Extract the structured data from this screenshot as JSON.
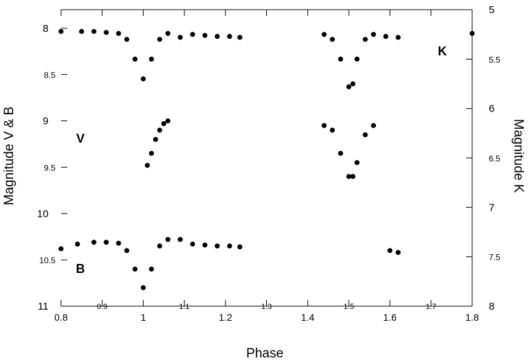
{
  "chart_data": {
    "type": "scatter",
    "title": "",
    "xlabel": "Phase",
    "ylabel_left": "Magnitude V & B",
    "ylabel_right": "Magnitude K",
    "xlim": [
      0.8,
      1.8
    ],
    "ylim_left": [
      11,
      7.8
    ],
    "ylim_right": [
      8,
      5
    ],
    "x_ticks": [
      "0.8",
      "0.9",
      "1",
      "1.1",
      "1.2",
      "1.3",
      "1.4",
      "1.5",
      "1.6",
      "1.7",
      "1.8"
    ],
    "y_left_ticks": [
      "8",
      "8.5",
      "9",
      "9.5",
      "10",
      "10.5",
      "11"
    ],
    "y_right_ticks": [
      "5",
      "5.5",
      "6",
      "6.5",
      "7",
      "7.5",
      "8"
    ],
    "grid": false,
    "marker_color": "#000000",
    "series": [
      {
        "name": "K",
        "axis": "right",
        "x": [
          0.8,
          0.85,
          0.88,
          0.91,
          0.94,
          0.96,
          0.98,
          1.0,
          1.02,
          1.04,
          1.06,
          1.09,
          1.12,
          1.15,
          1.18,
          1.21,
          1.235,
          1.44,
          1.46,
          1.48,
          1.5,
          1.51,
          1.52,
          1.54,
          1.56,
          1.59,
          1.62,
          1.8
        ],
        "values": [
          5.22,
          5.22,
          5.22,
          5.23,
          5.24,
          5.3,
          5.5,
          5.7,
          5.5,
          5.3,
          5.24,
          5.28,
          5.25,
          5.26,
          5.27,
          5.27,
          5.28,
          5.25,
          5.3,
          5.5,
          5.78,
          5.75,
          5.5,
          5.3,
          5.25,
          5.27,
          5.28,
          5.24
        ]
      },
      {
        "name": "V",
        "axis": "left",
        "x": [
          1.01,
          1.02,
          1.03,
          1.04,
          1.05,
          1.06,
          1.44,
          1.46,
          1.48,
          1.5,
          1.51,
          1.52,
          1.54,
          1.56
        ],
        "values": [
          9.48,
          9.35,
          9.2,
          9.1,
          9.03,
          9.0,
          9.05,
          9.1,
          9.35,
          9.6,
          9.6,
          9.45,
          9.15,
          9.05
        ]
      },
      {
        "name": "B",
        "axis": "left",
        "x": [
          0.8,
          0.84,
          0.88,
          0.91,
          0.94,
          0.96,
          0.98,
          1.0,
          1.02,
          1.04,
          1.06,
          1.09,
          1.12,
          1.15,
          1.18,
          1.21,
          1.235,
          1.6,
          1.62
        ],
        "values": [
          10.38,
          10.33,
          10.31,
          10.31,
          10.32,
          10.4,
          10.6,
          10.8,
          10.6,
          10.35,
          10.28,
          10.28,
          10.33,
          10.34,
          10.35,
          10.35,
          10.36,
          10.4,
          10.42
        ]
      }
    ]
  }
}
